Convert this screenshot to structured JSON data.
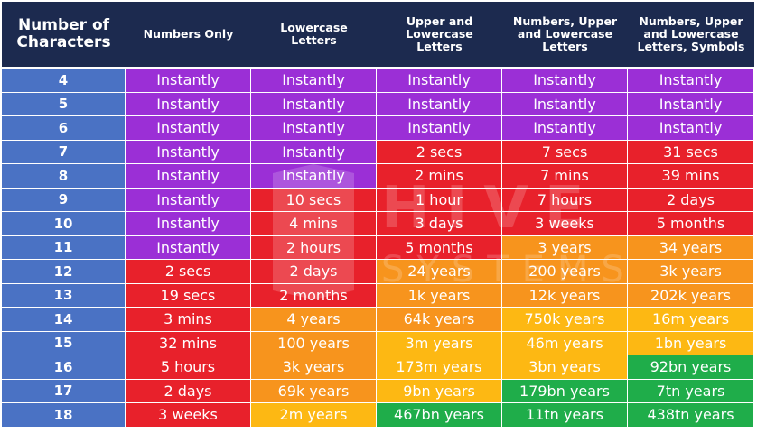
{
  "table": {
    "columns": [
      "Number of Characters",
      "Numbers Only",
      "Lowercase Letters",
      "Upper and Lowercase Letters",
      "Numbers, Upper and Lowercase Letters",
      "Numbers, Upper and Lowercase Letters, Symbols"
    ],
    "rows": [
      [
        "4",
        "Instantly",
        "Instantly",
        "Instantly",
        "Instantly",
        "Instantly"
      ],
      [
        "5",
        "Instantly",
        "Instantly",
        "Instantly",
        "Instantly",
        "Instantly"
      ],
      [
        "6",
        "Instantly",
        "Instantly",
        "Instantly",
        "Instantly",
        "Instantly"
      ],
      [
        "7",
        "Instantly",
        "Instantly",
        "2 secs",
        "7 secs",
        "31 secs"
      ],
      [
        "8",
        "Instantly",
        "Instantly",
        "2 mins",
        "7 mins",
        "39 mins"
      ],
      [
        "9",
        "Instantly",
        "10 secs",
        "1 hour",
        "7 hours",
        "2 days"
      ],
      [
        "10",
        "Instantly",
        "4 mins",
        "3 days",
        "3 weeks",
        "5 months"
      ],
      [
        "11",
        "Instantly",
        "2 hours",
        "5 months",
        "3 years",
        "34 years"
      ],
      [
        "12",
        "2 secs",
        "2 days",
        "24 years",
        "200 years",
        "3k years"
      ],
      [
        "13",
        "19 secs",
        "2 months",
        "1k years",
        "12k years",
        "202k years"
      ],
      [
        "14",
        "3 mins",
        "4 years",
        "64k years",
        "750k years",
        "16m years"
      ],
      [
        "15",
        "32 mins",
        "100 years",
        "3m years",
        "46m years",
        "1bn years"
      ],
      [
        "16",
        "5 hours",
        "3k years",
        "173m years",
        "3bn years",
        "92bn years"
      ],
      [
        "17",
        "2 days",
        "69k years",
        "9bn years",
        "179bn years",
        "7tn years"
      ],
      [
        "18",
        "3 weeks",
        "2m years",
        "467bn years",
        "11tn years",
        "438tn years"
      ]
    ],
    "row_colors": [
      [
        "#4a72c4",
        "#9b2fd6",
        "#9b2fd6",
        "#9b2fd6",
        "#9b2fd6",
        "#9b2fd6"
      ],
      [
        "#4a72c4",
        "#9b2fd6",
        "#9b2fd6",
        "#9b2fd6",
        "#9b2fd6",
        "#9b2fd6"
      ],
      [
        "#4a72c4",
        "#9b2fd6",
        "#9b2fd6",
        "#9b2fd6",
        "#9b2fd6",
        "#9b2fd6"
      ],
      [
        "#4a72c4",
        "#9b2fd6",
        "#9b2fd6",
        "#e8212b",
        "#e8212b",
        "#e8212b"
      ],
      [
        "#4a72c4",
        "#9b2fd6",
        "#9b2fd6",
        "#e8212b",
        "#e8212b",
        "#e8212b"
      ],
      [
        "#4a72c4",
        "#9b2fd6",
        "#e8212b",
        "#e8212b",
        "#e8212b",
        "#e8212b"
      ],
      [
        "#4a72c4",
        "#9b2fd6",
        "#e8212b",
        "#e8212b",
        "#e8212b",
        "#e8212b"
      ],
      [
        "#4a72c4",
        "#9b2fd6",
        "#e8212b",
        "#e8212b",
        "#f7941d",
        "#f7941d"
      ],
      [
        "#4a72c4",
        "#e8212b",
        "#e8212b",
        "#f7941d",
        "#f7941d",
        "#f7941d"
      ],
      [
        "#4a72c4",
        "#e8212b",
        "#e8212b",
        "#f7941d",
        "#f7941d",
        "#f7941d"
      ],
      [
        "#4a72c4",
        "#e8212b",
        "#f7941d",
        "#f7941d",
        "#fdb813",
        "#fdb813"
      ],
      [
        "#4a72c4",
        "#e8212b",
        "#f7941d",
        "#fdb813",
        "#fdb813",
        "#fdb813"
      ],
      [
        "#4a72c4",
        "#e8212b",
        "#f7941d",
        "#fdb813",
        "#fdb813",
        "#1fad4a"
      ],
      [
        "#4a72c4",
        "#e8212b",
        "#f7941d",
        "#fdb813",
        "#1fad4a",
        "#1fad4a"
      ],
      [
        "#4a72c4",
        "#e8212b",
        "#fdb813",
        "#1fad4a",
        "#1fad4a",
        "#1fad4a"
      ]
    ]
  },
  "chart_data": {
    "type": "table",
    "columns": [
      "Number of Characters",
      "Numbers Only",
      "Lowercase Letters",
      "Upper and Lowercase Letters",
      "Numbers, Upper and Lowercase Letters",
      "Numbers, Upper and Lowercase Letters, Symbols"
    ],
    "rows": [
      [
        "4",
        "Instantly",
        "Instantly",
        "Instantly",
        "Instantly",
        "Instantly"
      ],
      [
        "5",
        "Instantly",
        "Instantly",
        "Instantly",
        "Instantly",
        "Instantly"
      ],
      [
        "6",
        "Instantly",
        "Instantly",
        "Instantly",
        "Instantly",
        "Instantly"
      ],
      [
        "7",
        "Instantly",
        "Instantly",
        "2 secs",
        "7 secs",
        "31 secs"
      ],
      [
        "8",
        "Instantly",
        "Instantly",
        "2 mins",
        "7 mins",
        "39 mins"
      ],
      [
        "9",
        "Instantly",
        "10 secs",
        "1 hour",
        "7 hours",
        "2 days"
      ],
      [
        "10",
        "Instantly",
        "4 mins",
        "3 days",
        "3 weeks",
        "5 months"
      ],
      [
        "11",
        "Instantly",
        "2 hours",
        "5 months",
        "3 years",
        "34 years"
      ],
      [
        "12",
        "2 secs",
        "2 days",
        "24 years",
        "200 years",
        "3k years"
      ],
      [
        "13",
        "19 secs",
        "2 months",
        "1k years",
        "12k years",
        "202k years"
      ],
      [
        "14",
        "3 mins",
        "4 years",
        "64k years",
        "750k years",
        "16m years"
      ],
      [
        "15",
        "32 mins",
        "100 years",
        "3m years",
        "46m years",
        "1bn years"
      ],
      [
        "16",
        "5 hours",
        "3k years",
        "173m years",
        "3bn years",
        "92bn years"
      ],
      [
        "17",
        "2 days",
        "69k years",
        "9bn years",
        "179bn years",
        "7tn years"
      ],
      [
        "18",
        "3 weeks",
        "2m years",
        "467bn years",
        "11tn years",
        "438tn years"
      ]
    ]
  },
  "watermark": {
    "line1": "HIVE",
    "line2": "SYSTEMS"
  },
  "colors": {
    "header_bg": "#1c2a4f",
    "number_col": "#4a72c4",
    "instantly": "#9b2fd6",
    "red": "#e8212b",
    "orange": "#f7941d",
    "yellow": "#fdb813",
    "green": "#1fad4a"
  }
}
